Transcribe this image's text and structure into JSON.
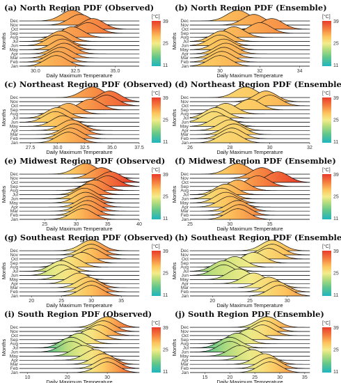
{
  "figure": {
    "months": [
      "Jan",
      "Feb",
      "Mar",
      "Apr",
      "May",
      "Jun",
      "Jul",
      "Aug",
      "Sep",
      "Oct",
      "Nov",
      "Dec"
    ],
    "ylabel": "Months",
    "xlabel": "Daily Maximum Temperature",
    "legend": {
      "unit": "[°C]",
      "ticks": [
        "39",
        "25",
        "11"
      ],
      "range": [
        11,
        39
      ],
      "colors": [
        "#1fb5bf",
        "#63c78a",
        "#c2e07c",
        "#f3ec8a",
        "#fdc55e",
        "#f57f3f",
        "#e93b2a"
      ]
    }
  },
  "chart_data": [
    {
      "panel": "a",
      "title": "(a) North Region PDF (Observed)",
      "type": "ridgeline",
      "xlim": [
        29.0,
        36.5
      ],
      "xticks": [
        "30.0",
        "32.5",
        "35.0"
      ],
      "xtick_values": [
        30.0,
        32.5,
        35.0
      ],
      "peak_temperature_by_month": [
        31.3,
        31.4,
        31.6,
        31.8,
        31.7,
        31.4,
        31.6,
        32.3,
        33.3,
        33.6,
        32.8,
        32.3
      ]
    },
    {
      "panel": "b",
      "title": "(b) North Region PDF (Ensemble)",
      "type": "ridgeline",
      "xlim": [
        28.5,
        34.5
      ],
      "xticks": [
        "30",
        "32",
        "34"
      ],
      "xtick_values": [
        30,
        32,
        34
      ],
      "peak_temperature_by_month": [
        30.0,
        30.1,
        30.2,
        30.3,
        30.2,
        30.0,
        30.1,
        30.7,
        32.0,
        32.6,
        31.7,
        30.9
      ]
    },
    {
      "panel": "c",
      "title": "(c) Northeast Region PDF (Observed)",
      "type": "ridgeline",
      "xlim": [
        26.5,
        37.5
      ],
      "xticks": [
        "27.5",
        "30.0",
        "32.5",
        "35.0",
        "37.5"
      ],
      "xtick_values": [
        27.5,
        30.0,
        32.5,
        35.0,
        37.5
      ],
      "peak_temperature_by_month": [
        31.0,
        31.2,
        31.5,
        31.3,
        30.5,
        29.8,
        30.0,
        31.0,
        33.0,
        34.5,
        34.8,
        33.2
      ]
    },
    {
      "panel": "d",
      "title": "(d) Northeast Region PDF (Ensemble)",
      "type": "ridgeline",
      "xlim": [
        26,
        32
      ],
      "xticks": [
        "26",
        "28",
        "30",
        "32"
      ],
      "xtick_values": [
        26,
        28,
        30,
        32
      ],
      "peak_temperature_by_month": [
        28.0,
        28.1,
        28.2,
        28.0,
        27.6,
        27.2,
        27.3,
        27.8,
        29.0,
        30.0,
        29.8,
        28.8
      ]
    },
    {
      "panel": "e",
      "title": "(e) Midwest Region PDF (Observed)",
      "type": "ridgeline",
      "xlim": [
        21,
        40
      ],
      "xticks": [
        "25",
        "30",
        "35",
        "40"
      ],
      "xtick_values": [
        25,
        30,
        35,
        40
      ],
      "peak_temperature_by_month": [
        31.0,
        31.5,
        31.8,
        32.0,
        31.5,
        31.3,
        32.0,
        33.0,
        35.0,
        35.5,
        34.0,
        31.5
      ]
    },
    {
      "panel": "f",
      "title": "(f) Midwest Region PDF (Ensemble)",
      "type": "ridgeline",
      "xlim": [
        25,
        40
      ],
      "xticks": [
        "25",
        "30",
        "35"
      ],
      "xtick_values": [
        25,
        30,
        35
      ],
      "peak_temperature_by_month": [
        31.0,
        31.2,
        31.0,
        30.0,
        29.5,
        29.0,
        29.5,
        31.0,
        33.5,
        36.0,
        34.0,
        31.0
      ]
    },
    {
      "panel": "g",
      "title": "(g) Southeast Region PDF (Observed)",
      "type": "ridgeline",
      "xlim": [
        18,
        38
      ],
      "xticks": [
        "20",
        "25",
        "30",
        "35"
      ],
      "xtick_values": [
        20,
        25,
        30,
        35
      ],
      "peak_temperature_by_month": [
        30.0,
        30.0,
        29.5,
        28.0,
        26.5,
        25.0,
        25.0,
        26.5,
        28.5,
        30.0,
        30.0,
        30.0
      ]
    },
    {
      "panel": "h",
      "title": "(h) Southeast Region PDF (Ensemble)",
      "type": "ridgeline",
      "xlim": [
        17,
        33
      ],
      "xticks": [
        "20",
        "25",
        "30"
      ],
      "xtick_values": [
        20,
        25,
        30
      ],
      "peak_temperature_by_month": [
        29.0,
        28.5,
        27.5,
        25.5,
        23.5,
        21.5,
        21.5,
        23.0,
        25.5,
        27.5,
        28.0,
        28.0
      ]
    },
    {
      "panel": "i",
      "title": "(i) South Region PDF (Observed)",
      "type": "ridgeline",
      "xlim": [
        8,
        38
      ],
      "xticks": [
        "10",
        "20",
        "30"
      ],
      "xtick_values": [
        10,
        20,
        30
      ],
      "peak_temperature_by_month": [
        30.0,
        30.0,
        29.0,
        27.0,
        24.0,
        21.0,
        21.0,
        23.0,
        26.0,
        28.0,
        29.0,
        30.0
      ]
    },
    {
      "panel": "j",
      "title": "(j) South Region PDF (Ensemble)",
      "type": "ridgeline",
      "xlim": [
        12,
        36
      ],
      "xticks": [
        "15",
        "20",
        "25",
        "30",
        "35"
      ],
      "xtick_values": [
        15,
        20,
        25,
        30,
        35
      ],
      "peak_temperature_by_month": [
        28.0,
        28.0,
        27.0,
        24.5,
        22.0,
        20.0,
        20.0,
        21.5,
        24.0,
        26.5,
        27.0,
        27.5
      ]
    }
  ]
}
